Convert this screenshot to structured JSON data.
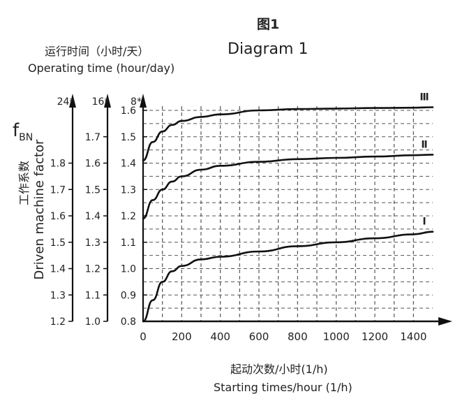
{
  "chart_data": {
    "type": "line",
    "title": "图1",
    "subtitle": "Diagram 1",
    "top_label_cn": "运行时间（小时/天）",
    "top_label_en": "Operating time (hour/day)",
    "ylabel_symbol": "f",
    "ylabel_symbol_sub": "BN",
    "ylabel_cn": "工作系数",
    "ylabel_en": "Driven machine factor",
    "xlabel_cn": "起动次数/小时(1/h)",
    "xlabel_en": "Starting times/hour (1/h)",
    "xlim": [
      0,
      1500
    ],
    "ylim": [
      0.8,
      1.6
    ],
    "x_ticks": [
      "0",
      "200",
      "400",
      "600",
      "800",
      "1000",
      "1200",
      "1400"
    ],
    "grid": true,
    "y_axes": [
      {
        "header": "24*",
        "ticks": [
          "1.2",
          "1.3",
          "1.4",
          "1.5",
          "1.6",
          "1.7",
          "1.8"
        ],
        "offset": 0.4
      },
      {
        "header": "16*",
        "ticks": [
          "1.0",
          "1.1",
          "1.2",
          "1.3",
          "1.4",
          "1.5",
          "1.6",
          "1.7"
        ],
        "offset": 0.2
      },
      {
        "header": "8*",
        "ticks": [
          "0.8",
          "0.9",
          "1.0",
          "1.1",
          "1.2",
          "1.3",
          "1.4",
          "1.5",
          "1.6"
        ],
        "offset": 0.0
      }
    ],
    "series": [
      {
        "name": "Ⅰ",
        "x": [
          0,
          50,
          100,
          150,
          200,
          300,
          400,
          600,
          800,
          1000,
          1200,
          1400,
          1500
        ],
        "values": [
          0.8,
          0.88,
          0.95,
          0.99,
          1.01,
          1.035,
          1.045,
          1.065,
          1.085,
          1.1,
          1.115,
          1.13,
          1.14
        ]
      },
      {
        "name": "Ⅱ",
        "x": [
          0,
          50,
          100,
          150,
          200,
          300,
          400,
          600,
          800,
          1000,
          1200,
          1400,
          1500
        ],
        "values": [
          1.19,
          1.26,
          1.3,
          1.33,
          1.35,
          1.375,
          1.39,
          1.405,
          1.415,
          1.42,
          1.425,
          1.43,
          1.432
        ]
      },
      {
        "name": "Ⅲ",
        "x": [
          0,
          50,
          100,
          150,
          200,
          300,
          400,
          600,
          800,
          1000,
          1200,
          1400,
          1500
        ],
        "values": [
          1.41,
          1.48,
          1.52,
          1.545,
          1.56,
          1.575,
          1.585,
          1.6,
          1.605,
          1.607,
          1.609,
          1.61,
          1.612
        ]
      }
    ]
  }
}
